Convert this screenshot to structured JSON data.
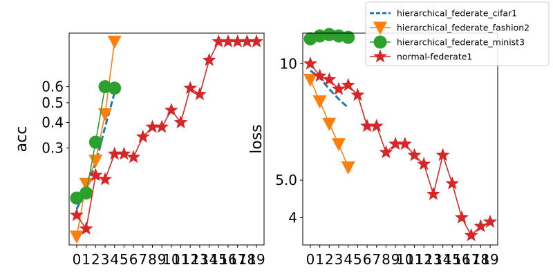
{
  "chart_data": [
    {
      "type": "line",
      "ylabel": "acc",
      "xlabel": "",
      "yscale": "log",
      "xlim": [
        -0.8,
        19.8
      ],
      "ylim": [
        0.1,
        1.1
      ],
      "x_ticks": [
        "0",
        "1",
        "2",
        "3",
        "4",
        "5",
        "6",
        "7",
        "8",
        "9",
        "10",
        "11",
        "12",
        "13",
        "14",
        "15",
        "16",
        "17",
        "18",
        "19"
      ],
      "y_ticks": [
        {
          "value": 0.3,
          "label": "0.3"
        },
        {
          "value": 0.4,
          "label": "0.4"
        },
        {
          "value": 0.5,
          "label": "0.5"
        },
        {
          "value": 0.6,
          "label": "0.6"
        }
      ],
      "series": [
        {
          "name": "hierarchical_federate_cifar1",
          "x": [
            0,
            1,
            2,
            3,
            4
          ],
          "values": [
            0.15,
            0.19,
            0.25,
            0.38,
            0.56
          ]
        },
        {
          "name": "hierarchical_federate_fashion2",
          "x": [
            0,
            1,
            2,
            3,
            4
          ],
          "values": [
            0.11,
            0.2,
            0.26,
            0.44,
            1.0
          ]
        },
        {
          "name": "hierarchical_federate_minist3",
          "x": [
            0,
            1,
            2,
            3,
            4
          ],
          "values": [
            0.17,
            0.18,
            0.32,
            0.6,
            0.59
          ]
        },
        {
          "name": "normal-federate1",
          "x": [
            0,
            1,
            2,
            3,
            4,
            5,
            6,
            7,
            8,
            9,
            10,
            11,
            12,
            13,
            14,
            15,
            16,
            17,
            18,
            19
          ],
          "values": [
            0.14,
            0.12,
            0.22,
            0.21,
            0.28,
            0.28,
            0.27,
            0.34,
            0.38,
            0.38,
            0.46,
            0.4,
            0.59,
            0.55,
            0.81,
            1.0,
            1.0,
            1.0,
            1.0,
            1.0
          ]
        }
      ]
    },
    {
      "type": "line",
      "ylabel": "loss",
      "xlabel": "",
      "yscale": "log",
      "xlim": [
        -0.8,
        19.8
      ],
      "ylim": [
        3.4,
        12.0
      ],
      "x_ticks": [
        "0",
        "1",
        "2",
        "3",
        "4",
        "5",
        "6",
        "7",
        "8",
        "9",
        "10",
        "11",
        "12",
        "13",
        "14",
        "15",
        "16",
        "17",
        "18",
        "19"
      ],
      "y_ticks": [
        {
          "value": 4,
          "label": "4"
        },
        {
          "value": 5,
          "label": "5.0"
        },
        {
          "value": 10,
          "label": "10"
        }
      ],
      "series": [
        {
          "name": "hierarchical_federate_cifar1",
          "x": [
            0,
            1,
            2,
            3,
            4
          ],
          "values": [
            9.6,
            9.2,
            8.6,
            8.1,
            7.7
          ]
        },
        {
          "name": "hierarchical_federate_fashion2",
          "x": [
            0,
            1,
            2,
            3,
            4
          ],
          "values": [
            9.1,
            8.0,
            7.0,
            6.2,
            5.4
          ]
        },
        {
          "name": "hierarchical_federate_minist3",
          "x": [
            0,
            1,
            2,
            3,
            4
          ],
          "values": [
            11.6,
            11.8,
            11.9,
            11.8,
            11.7
          ]
        },
        {
          "name": "normal-federate1",
          "x": [
            0,
            1,
            2,
            3,
            4,
            5,
            6,
            7,
            8,
            9,
            10,
            11,
            12,
            13,
            14,
            15,
            16,
            17,
            18,
            19
          ],
          "values": [
            10.0,
            9.3,
            9.1,
            8.6,
            8.8,
            8.3,
            6.9,
            6.9,
            5.9,
            6.2,
            6.2,
            5.8,
            5.5,
            4.6,
            5.8,
            4.9,
            4.0,
            3.6,
            3.8,
            3.9
          ]
        }
      ]
    }
  ],
  "legend": {
    "placement": "top-right",
    "entries": [
      {
        "label": "hierarchical_federate_cifar1",
        "color": "#1f77b4",
        "marker": "none",
        "dash": true
      },
      {
        "label": "hierarchical_federate_fashion2",
        "color": "#ff7f0e",
        "marker": "triangle-down",
        "dash": false
      },
      {
        "label": "hierarchical_federate_minist3",
        "color": "#2ca02c",
        "marker": "circle",
        "dash": false
      },
      {
        "label": "normal-federate1",
        "color": "#d62728",
        "marker": "star",
        "dash": false
      }
    ]
  },
  "colors": {
    "cifar": "#1f77b4",
    "fashion": "#ff7f0e",
    "minist": "#2ca02c",
    "normal": "#d62728"
  }
}
